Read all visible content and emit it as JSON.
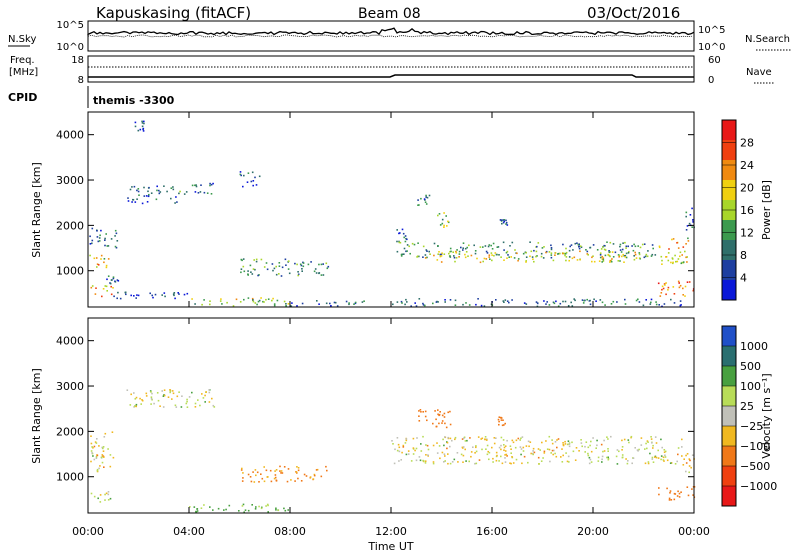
{
  "header": {
    "station": "Kapuskasing (fitACF)",
    "beam": "Beam 08",
    "date": "03/Oct/2016"
  },
  "top_panels": {
    "nsky": {
      "label": "N.Sky",
      "ticks_left": [
        "10^5",
        "10^0"
      ],
      "right_label": "N.Search",
      "ticks_right": [
        "10^5",
        "10^0"
      ]
    },
    "freq": {
      "label_line1": "Freq.",
      "label_line2": "[MHz]",
      "ticks_left": [
        "18",
        "8"
      ],
      "right_label": "Nave",
      "ticks_right": [
        "60",
        "0"
      ]
    },
    "cpid": {
      "label": "CPID",
      "value": "themis -3300"
    }
  },
  "colors": {
    "power": [
      "#0a18d8",
      "#1e3fa0",
      "#2f6f6a",
      "#3c9a4e",
      "#a8d62a",
      "#f0d010",
      "#f08a10",
      "#f04010",
      "#e81818"
    ],
    "velocity": [
      "#2050c8",
      "#2a6f70",
      "#48a040",
      "#b8dc58",
      "#c0c0b8",
      "#f0b820",
      "#f07818",
      "#f04010",
      "#e81818"
    ]
  },
  "chart_data": [
    {
      "type": "heatmap",
      "quantity": "power",
      "ylabel": "Slant Range [km]",
      "yticks": [
        1000,
        2000,
        3000,
        4000
      ],
      "ylim": [
        200,
        4500
      ],
      "xlim": [
        0,
        24
      ],
      "colorbar": {
        "label": "Power [dB]",
        "ticks": [
          "28",
          "24",
          "20",
          "16",
          "12",
          "8",
          "4"
        ],
        "range": [
          0,
          32
        ]
      },
      "regions": [
        {
          "t": [
            0.05,
            0.85
          ],
          "r": [
            1050,
            1380
          ],
          "v": 22
        },
        {
          "t": [
            0.05,
            1.2
          ],
          "r": [
            1500,
            1950
          ],
          "v": 9
        },
        {
          "t": [
            0.05,
            1.0
          ],
          "r": [
            450,
            700
          ],
          "v": 24
        },
        {
          "t": [
            0.6,
            1.2
          ],
          "r": [
            700,
            900
          ],
          "v": 8
        },
        {
          "t": [
            1.5,
            3.5
          ],
          "r": [
            2500,
            2900
          ],
          "v": 7
        },
        {
          "t": [
            1.8,
            2.2
          ],
          "r": [
            4100,
            4400
          ],
          "v": 7
        },
        {
          "t": [
            3.5,
            5.0
          ],
          "r": [
            2700,
            2950
          ],
          "v": 10
        },
        {
          "t": [
            6.0,
            6.8
          ],
          "r": [
            2850,
            3200
          ],
          "v": 8
        },
        {
          "t": [
            0.6,
            4.0
          ],
          "r": [
            400,
            560
          ],
          "v": 6
        },
        {
          "t": [
            4.0,
            8.0
          ],
          "r": [
            230,
            420
          ],
          "v": 18
        },
        {
          "t": [
            6.0,
            9.5
          ],
          "r": [
            900,
            1280
          ],
          "v": 12
        },
        {
          "t": [
            8.0,
            11.0
          ],
          "r": [
            230,
            360
          ],
          "v": 9
        },
        {
          "t": [
            12.2,
            12.6
          ],
          "r": [
            1650,
            1950
          ],
          "v": 9
        },
        {
          "t": [
            12.2,
            22.5
          ],
          "r": [
            1300,
            1650
          ],
          "v": 12
        },
        {
          "t": [
            13.0,
            22.0
          ],
          "r": [
            1200,
            1450
          ],
          "v": 20
        },
        {
          "t": [
            13.8,
            14.3
          ],
          "r": [
            1900,
            2300
          ],
          "v": 16
        },
        {
          "t": [
            13.0,
            13.5
          ],
          "r": [
            2400,
            2700
          ],
          "v": 10
        },
        {
          "t": [
            16.3,
            16.6
          ],
          "r": [
            2000,
            2150
          ],
          "v": 10
        },
        {
          "t": [
            22.5,
            23.8
          ],
          "r": [
            1150,
            1750
          ],
          "v": 22
        },
        {
          "t": [
            22.5,
            24.0
          ],
          "r": [
            450,
            800
          ],
          "v": 26
        },
        {
          "t": [
            23.6,
            24.0
          ],
          "r": [
            1900,
            2400
          ],
          "v": 8
        },
        {
          "t": [
            12.0,
            23.5
          ],
          "r": [
            230,
            400
          ],
          "v": 8
        }
      ]
    },
    {
      "type": "heatmap",
      "quantity": "velocity",
      "xlabel": "Time UT",
      "ylabel": "Slant Range [km]",
      "xticks": [
        "00:00",
        "04:00",
        "08:00",
        "12:00",
        "16:00",
        "20:00",
        "00:00"
      ],
      "yticks": [
        1000,
        2000,
        3000,
        4000
      ],
      "ylim": [
        200,
        4500
      ],
      "xlim": [
        0,
        24
      ],
      "colorbar": {
        "label": "Velocity [m s⁻¹]",
        "ticks": [
          "1000",
          "500",
          "100",
          "25",
          "−25",
          "−100",
          "−500",
          "−1000"
        ],
        "range": [
          -1200,
          1200
        ]
      },
      "regions": [
        {
          "t": [
            0.05,
            1.0
          ],
          "r": [
            1100,
            2000
          ],
          "v": 0
        },
        {
          "t": [
            0.05,
            1.0
          ],
          "r": [
            450,
            700
          ],
          "v": 40
        },
        {
          "t": [
            1.5,
            5.0
          ],
          "r": [
            2550,
            2950
          ],
          "v": 5
        },
        {
          "t": [
            6.0,
            9.5
          ],
          "r": [
            900,
            1250
          ],
          "v": -150
        },
        {
          "t": [
            4.0,
            8.0
          ],
          "r": [
            230,
            420
          ],
          "v": 150
        },
        {
          "t": [
            12.0,
            23.5
          ],
          "r": [
            1300,
            1900
          ],
          "v": 0
        },
        {
          "t": [
            13.0,
            14.5
          ],
          "r": [
            2100,
            2500
          ],
          "v": -300
        },
        {
          "t": [
            16.2,
            16.5
          ],
          "r": [
            2150,
            2350
          ],
          "v": -300
        },
        {
          "t": [
            22.5,
            24.0
          ],
          "r": [
            500,
            800
          ],
          "v": -350
        },
        {
          "t": [
            23.5,
            24.0
          ],
          "r": [
            1100,
            1600
          ],
          "v": -60
        }
      ]
    }
  ]
}
